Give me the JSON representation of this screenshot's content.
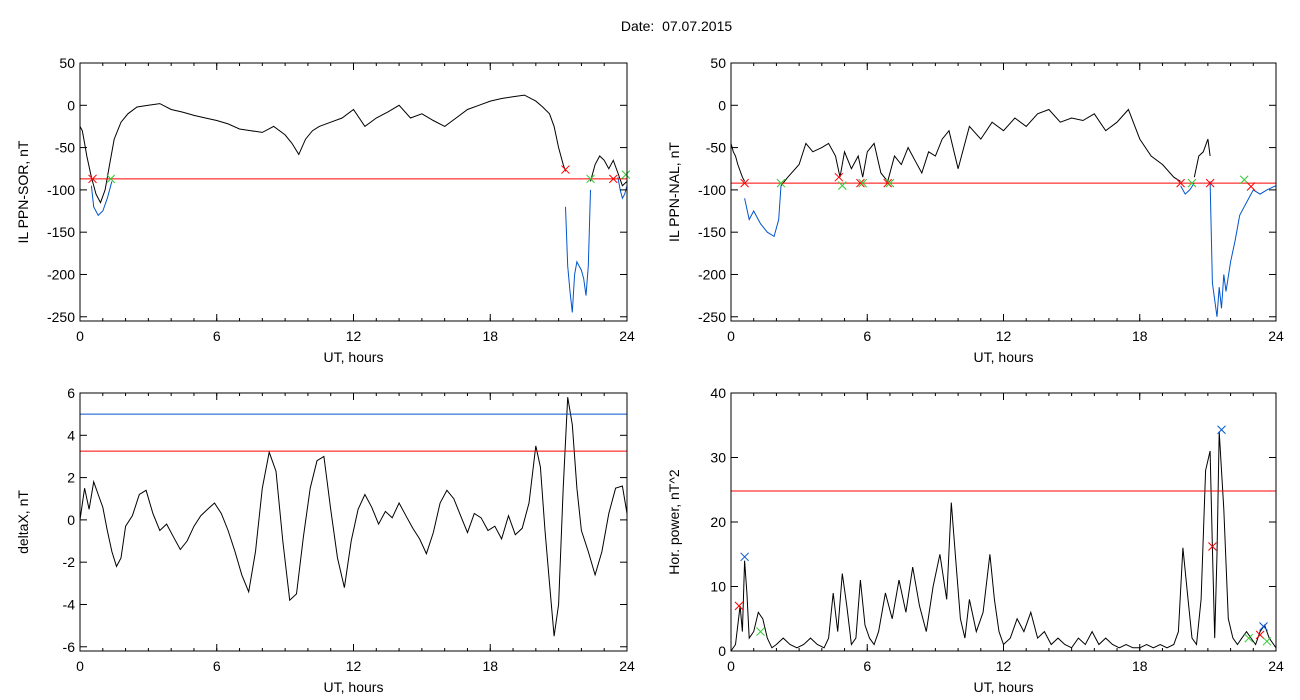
{
  "page": {
    "title": "Date:  07.07.2015"
  },
  "colors": {
    "line": "#000000",
    "threshold": "#ff0000",
    "highlight": "#0055cc",
    "marker_red": "#ff0000",
    "marker_green": "#33cc33",
    "marker_blue": "#0055cc"
  },
  "chart_data": [
    {
      "type": "line",
      "xlabel": "UT, hours",
      "ylabel": "IL PPN-SOR, nT",
      "xlim": [
        0,
        24
      ],
      "ylim": [
        -255,
        50
      ],
      "xticks": [
        0,
        6,
        12,
        18,
        24
      ],
      "yticks": [
        50,
        0,
        -50,
        -100,
        -150,
        -200,
        -250
      ],
      "series": [
        {
          "color": "black",
          "x": [
            0,
            0.1,
            0.2,
            0.3,
            0.5,
            0.7,
            0.9,
            1.1,
            1.3,
            1.5,
            1.8,
            2.1,
            2.5,
            3,
            3.5,
            4,
            4.5,
            5,
            5.5,
            6,
            6.5,
            7,
            7.5,
            8,
            8.5,
            9,
            9.3,
            9.6,
            9.9,
            10.2,
            10.5,
            11,
            11.5,
            12,
            12.5,
            13,
            13.5,
            14,
            14.5,
            15,
            15.5,
            16,
            16.5,
            17,
            17.5,
            18,
            18.5,
            19,
            19.5,
            20,
            20.3,
            20.6,
            20.8,
            21,
            21.2,
            21.3
          ],
          "y": [
            -25,
            -30,
            -45,
            -60,
            -85,
            -105,
            -115,
            -100,
            -70,
            -40,
            -20,
            -10,
            -2,
            0,
            2,
            -5,
            -8,
            -12,
            -15,
            -18,
            -22,
            -28,
            -30,
            -32,
            -25,
            -35,
            -45,
            -58,
            -40,
            -30,
            -25,
            -20,
            -15,
            -5,
            -25,
            -15,
            -8,
            0,
            -15,
            -10,
            -18,
            -25,
            -15,
            -5,
            0,
            5,
            8,
            10,
            12,
            5,
            -2,
            -10,
            -25,
            -50,
            -70,
            -78
          ]
        },
        {
          "color": "blue",
          "x": [
            0.5,
            0.6,
            0.8,
            1.0,
            1.2,
            1.4
          ],
          "y": [
            -95,
            -120,
            -130,
            -125,
            -110,
            -90
          ]
        },
        {
          "color": "blue",
          "x": [
            21.3,
            21.4,
            21.5,
            21.6,
            21.7,
            21.8,
            21.9,
            22,
            22.1,
            22.2,
            22.3,
            22.4
          ],
          "y": [
            -120,
            -190,
            -220,
            -245,
            -200,
            -185,
            -190,
            -195,
            -205,
            -225,
            -190,
            -100
          ]
        },
        {
          "color": "black",
          "x": [
            22.4,
            22.6,
            22.8,
            23,
            23.2,
            23.4,
            23.6,
            23.8,
            24
          ],
          "y": [
            -90,
            -70,
            -60,
            -65,
            -75,
            -65,
            -80,
            -95,
            -90
          ]
        },
        {
          "color": "blue",
          "x": [
            23.6,
            23.7,
            23.8,
            23.9,
            24
          ],
          "y": [
            -85,
            -100,
            -110,
            -105,
            -95
          ]
        }
      ],
      "hlines": [
        {
          "color": "red",
          "y": -87
        }
      ],
      "markers": [
        {
          "color": "red",
          "x": 0.55,
          "y": -87
        },
        {
          "color": "green",
          "x": 1.35,
          "y": -87
        },
        {
          "color": "red",
          "x": 21.3,
          "y": -76
        },
        {
          "color": "green",
          "x": 22.4,
          "y": -87
        },
        {
          "color": "red",
          "x": 23.4,
          "y": -87
        },
        {
          "color": "green",
          "x": 23.95,
          "y": -82
        }
      ]
    },
    {
      "type": "line",
      "xlabel": "UT, hours",
      "ylabel": "IL PPN-NAL, nT",
      "xlim": [
        0,
        24
      ],
      "ylim": [
        -255,
        50
      ],
      "xticks": [
        0,
        6,
        12,
        18,
        24
      ],
      "yticks": [
        50,
        0,
        -50,
        -100,
        -150,
        -200,
        -250
      ],
      "series": [
        {
          "color": "black",
          "x": [
            0,
            0.1,
            0.2,
            0.3,
            0.5,
            0.6
          ],
          "y": [
            -45,
            -55,
            -60,
            -70,
            -85,
            -90
          ]
        },
        {
          "color": "blue",
          "x": [
            0.6,
            0.8,
            1,
            1.3,
            1.6,
            1.9,
            2.1,
            2.2
          ],
          "y": [
            -110,
            -135,
            -125,
            -140,
            -150,
            -155,
            -135,
            -95
          ]
        },
        {
          "color": "black",
          "x": [
            2.2,
            2.5,
            3,
            3.3,
            3.6,
            4,
            4.3,
            4.6,
            4.8,
            5,
            5.3,
            5.6,
            5.8,
            6,
            6.3,
            6.6,
            6.9,
            7.2,
            7.5,
            7.8,
            8.1,
            8.4,
            8.7,
            9,
            9.3,
            9.6,
            10,
            10.5,
            11,
            11.5,
            12,
            12.5,
            13,
            13.5,
            14,
            14.5,
            15,
            15.5,
            16,
            16.5,
            17,
            17.5,
            18,
            18.5,
            19,
            19.5,
            19.8
          ],
          "y": [
            -95,
            -85,
            -70,
            -45,
            -55,
            -50,
            -45,
            -60,
            -85,
            -55,
            -75,
            -60,
            -85,
            -55,
            -45,
            -80,
            -90,
            -60,
            -70,
            -50,
            -65,
            -80,
            -55,
            -60,
            -40,
            -30,
            -75,
            -25,
            -40,
            -20,
            -30,
            -15,
            -25,
            -10,
            -5,
            -20,
            -15,
            -18,
            -10,
            -30,
            -20,
            -5,
            -40,
            -60,
            -70,
            -85,
            -90
          ]
        },
        {
          "color": "blue",
          "x": [
            19.8,
            20,
            20.2,
            20.4
          ],
          "y": [
            -95,
            -105,
            -100,
            -92
          ]
        },
        {
          "color": "black",
          "x": [
            20.4,
            20.6,
            20.8,
            21,
            21.1
          ],
          "y": [
            -85,
            -60,
            -55,
            -40,
            -60
          ]
        },
        {
          "color": "blue",
          "x": [
            21.1,
            21.2,
            21.3,
            21.4,
            21.5,
            21.6,
            21.7,
            21.8,
            22,
            22.2,
            22.4,
            22.6,
            22.8,
            23,
            23.3,
            23.6,
            24
          ],
          "y": [
            -90,
            -210,
            -230,
            -250,
            -215,
            -240,
            -200,
            -220,
            -185,
            -160,
            -130,
            -120,
            -110,
            -100,
            -105,
            -100,
            -95
          ]
        }
      ],
      "hlines": [
        {
          "color": "red",
          "y": -92
        }
      ],
      "markers": [
        {
          "color": "red",
          "x": 0.6,
          "y": -92
        },
        {
          "color": "green",
          "x": 2.2,
          "y": -92
        },
        {
          "color": "red",
          "x": 4.75,
          "y": -85
        },
        {
          "color": "green",
          "x": 4.9,
          "y": -95
        },
        {
          "color": "red",
          "x": 5.7,
          "y": -92
        },
        {
          "color": "green",
          "x": 5.8,
          "y": -92
        },
        {
          "color": "red",
          "x": 6.9,
          "y": -92
        },
        {
          "color": "green",
          "x": 7.0,
          "y": -92
        },
        {
          "color": "red",
          "x": 19.8,
          "y": -92
        },
        {
          "color": "green",
          "x": 20.3,
          "y": -92
        },
        {
          "color": "red",
          "x": 21.1,
          "y": -92
        },
        {
          "color": "green",
          "x": 22.6,
          "y": -88
        },
        {
          "color": "red",
          "x": 22.9,
          "y": -96
        }
      ]
    },
    {
      "type": "line",
      "xlabel": "UT, hours",
      "ylabel": "deltaX, nT",
      "xlim": [
        0,
        24
      ],
      "ylim": [
        -6.2,
        6
      ],
      "xticks": [
        0,
        6,
        12,
        18,
        24
      ],
      "yticks": [
        6,
        4,
        2,
        0,
        -2,
        -4,
        -6
      ],
      "series": [
        {
          "color": "black",
          "x": [
            0,
            0.2,
            0.4,
            0.6,
            0.8,
            1,
            1.2,
            1.4,
            1.6,
            1.8,
            2,
            2.3,
            2.6,
            2.9,
            3.2,
            3.5,
            3.8,
            4.1,
            4.4,
            4.7,
            5,
            5.3,
            5.6,
            5.9,
            6.2,
            6.5,
            6.8,
            7.1,
            7.4,
            7.7,
            8,
            8.3,
            8.6,
            8.9,
            9.2,
            9.5,
            9.8,
            10.1,
            10.4,
            10.7,
            11,
            11.3,
            11.6,
            11.9,
            12.2,
            12.5,
            12.8,
            13.1,
            13.4,
            13.7,
            14,
            14.3,
            14.6,
            14.9,
            15.2,
            15.5,
            15.8,
            16.1,
            16.4,
            16.7,
            17,
            17.3,
            17.6,
            17.9,
            18.2,
            18.5,
            18.8,
            19.1,
            19.4,
            19.7,
            20,
            20.2,
            20.4,
            20.6,
            20.8,
            21,
            21.2,
            21.4,
            21.6,
            21.8,
            22,
            22.3,
            22.6,
            22.9,
            23.2,
            23.5,
            23.8,
            24
          ],
          "y": [
            0,
            1.5,
            0.5,
            1.8,
            1.2,
            0.6,
            -0.5,
            -1.5,
            -2.2,
            -1.8,
            -0.3,
            0.2,
            1.2,
            1.4,
            0.3,
            -0.5,
            -0.2,
            -0.8,
            -1.4,
            -1,
            -0.3,
            0.2,
            0.5,
            0.8,
            0.3,
            -0.5,
            -1.5,
            -2.6,
            -3.4,
            -1.5,
            1.5,
            3.2,
            2.3,
            -1,
            -3.8,
            -3.5,
            -0.8,
            1.5,
            2.8,
            3,
            0.5,
            -1.8,
            -3.2,
            -1,
            0.5,
            1.2,
            0.6,
            -0.2,
            0.4,
            0.1,
            0.8,
            0.2,
            -0.4,
            -0.9,
            -1.6,
            -0.6,
            0.8,
            1.4,
            1,
            0.2,
            -0.6,
            0.3,
            0.1,
            -0.5,
            -0.3,
            -0.9,
            0.2,
            -0.7,
            -0.4,
            0.8,
            3.5,
            2.5,
            -0.5,
            -3,
            -5.5,
            -4,
            1.5,
            5.8,
            4.5,
            1.5,
            -0.5,
            -1.5,
            -2.6,
            -1.5,
            0.3,
            1.5,
            1.6,
            0.3
          ]
        }
      ],
      "hlines": [
        {
          "color": "blue",
          "y": 5
        },
        {
          "color": "red",
          "y": 3.25
        }
      ],
      "markers": []
    },
    {
      "type": "line",
      "xlabel": "UT, hours",
      "ylabel": "Hor. power, nT^2",
      "xlim": [
        0,
        24
      ],
      "ylim": [
        0,
        40
      ],
      "xticks": [
        0,
        6,
        12,
        18,
        24
      ],
      "yticks": [
        40,
        30,
        20,
        10,
        0
      ],
      "series": [
        {
          "color": "black",
          "x": [
            0,
            0.2,
            0.4,
            0.5,
            0.6,
            0.7,
            0.8,
            1,
            1.2,
            1.4,
            1.6,
            1.8,
            2,
            2.3,
            2.6,
            2.9,
            3.2,
            3.5,
            3.8,
            4.1,
            4.3,
            4.5,
            4.7,
            4.9,
            5.1,
            5.3,
            5.5,
            5.7,
            5.9,
            6.1,
            6.3,
            6.5,
            6.8,
            7.1,
            7.4,
            7.7,
            8,
            8.3,
            8.6,
            8.9,
            9.2,
            9.5,
            9.7,
            9.9,
            10.1,
            10.3,
            10.5,
            10.8,
            11.1,
            11.4,
            11.6,
            11.8,
            12,
            12.3,
            12.6,
            12.9,
            13.2,
            13.5,
            13.8,
            14.1,
            14.4,
            14.7,
            15,
            15.3,
            15.6,
            15.9,
            16.2,
            16.5,
            16.8,
            17.1,
            17.4,
            17.7,
            18,
            18.3,
            18.6,
            18.9,
            19.2,
            19.5,
            19.7,
            19.9,
            20.1,
            20.3,
            20.5,
            20.7,
            20.9,
            21.1,
            21.2,
            21.3,
            21.4,
            21.5,
            21.7,
            21.9,
            22.1,
            22.3,
            22.5,
            22.7,
            22.9,
            23.1,
            23.3,
            23.5,
            23.7,
            23.9,
            24
          ],
          "y": [
            0,
            1,
            7,
            3,
            14,
            9,
            2,
            3,
            6,
            5,
            2,
            0.5,
            1,
            2,
            1,
            0.5,
            1,
            2,
            1,
            0.5,
            2,
            9,
            3,
            12,
            7,
            1,
            2,
            11,
            4,
            2,
            1,
            3,
            9,
            5,
            11,
            6,
            13,
            7,
            3,
            10,
            15,
            8,
            23,
            14,
            5,
            2,
            8,
            3,
            6,
            15,
            8,
            3,
            1,
            2,
            5,
            3,
            6,
            2,
            3,
            1,
            2,
            1,
            0.5,
            2,
            1,
            3,
            1,
            2,
            1,
            0.5,
            1,
            0.5,
            0.5,
            1,
            0.5,
            1,
            0.5,
            1,
            3,
            16,
            9,
            2,
            1,
            8,
            28,
            31,
            16,
            2,
            15,
            34,
            22,
            5,
            2,
            1,
            2,
            3,
            2,
            1,
            3,
            4,
            2,
            1,
            0.5
          ]
        }
      ],
      "hlines": [
        {
          "color": "red",
          "y": 24.8
        }
      ],
      "markers": [
        {
          "color": "red",
          "x": 0.35,
          "y": 7
        },
        {
          "color": "blue",
          "x": 0.6,
          "y": 14.6
        },
        {
          "color": "green",
          "x": 1.3,
          "y": 3
        },
        {
          "color": "red",
          "x": 21.2,
          "y": 16.2
        },
        {
          "color": "blue",
          "x": 21.6,
          "y": 34.3
        },
        {
          "color": "green",
          "x": 22.8,
          "y": 2
        },
        {
          "color": "red",
          "x": 23.3,
          "y": 2.5
        },
        {
          "color": "blue",
          "x": 23.45,
          "y": 3.8
        },
        {
          "color": "green",
          "x": 23.6,
          "y": 1.5
        }
      ]
    }
  ]
}
